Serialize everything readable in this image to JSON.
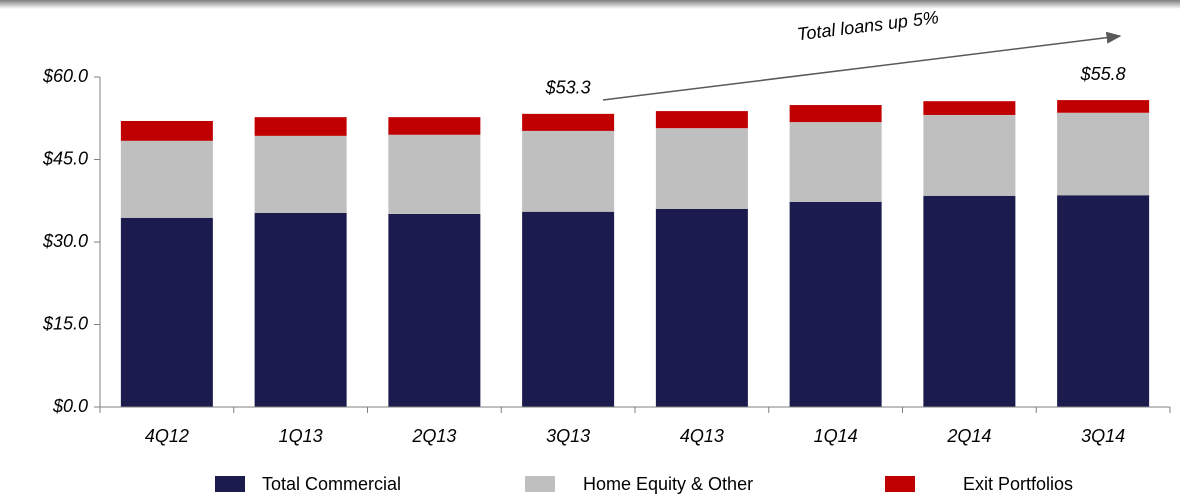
{
  "chart_data": {
    "type": "stacked_bar",
    "categories": [
      "4Q12",
      "1Q13",
      "2Q13",
      "3Q13",
      "4Q13",
      "1Q14",
      "2Q14",
      "3Q14"
    ],
    "series": [
      {
        "name": "Total Commercial",
        "color": "#1b1b4d",
        "values": [
          34.4,
          35.3,
          35.1,
          35.5,
          36.0,
          37.3,
          38.4,
          38.5
        ]
      },
      {
        "name": "Home Equity & Other",
        "color": "#bfbfbf",
        "values": [
          14.0,
          14.0,
          14.4,
          14.7,
          14.7,
          14.5,
          14.7,
          15.0
        ]
      },
      {
        "name": "Exit Portfolios",
        "color": "#c00000",
        "values": [
          3.6,
          3.4,
          3.2,
          3.1,
          3.1,
          3.1,
          2.5,
          2.3
        ]
      }
    ],
    "ylim": [
      0,
      60
    ],
    "yticks": [
      {
        "value": 0,
        "label": "$0.0"
      },
      {
        "value": 15,
        "label": "$15.0"
      },
      {
        "value": 30,
        "label": "$30.0"
      },
      {
        "value": 45,
        "label": "$45.0"
      },
      {
        "value": 60,
        "label": "$60.0"
      }
    ],
    "annotations": [
      {
        "text": "$53.3",
        "category": "3Q13"
      },
      {
        "text": "$55.8",
        "category": "3Q14"
      }
    ],
    "arrow_label": "Total loans up 5%"
  }
}
